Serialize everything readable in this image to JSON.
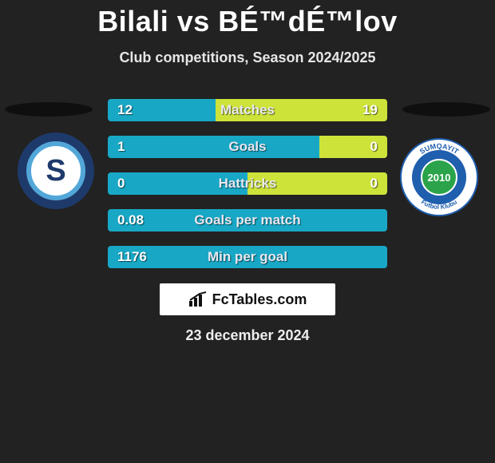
{
  "title": "Bilali vs BÉ™dÉ™lov",
  "subtitle": "Club competitions, Season 2024/2025",
  "date": "23 december 2024",
  "logo_text": "FcTables.com",
  "colors": {
    "bar_left": "#18a8c6",
    "bar_right": "#cde33a",
    "bg": "#222222"
  },
  "left_badge": {
    "name": "Sabah FC style",
    "ring": "#1e3a6b",
    "inner": "#ffffff",
    "accent": "#52a7d8",
    "letter": "S"
  },
  "right_badge": {
    "name": "Sumqayit FK style",
    "outer_text_top": "SUMQAYIT",
    "outer_text_bottom": "Futbol Klubu",
    "year": "2010",
    "ring": "#1f5fae",
    "inner": "#ffffff",
    "accent": "#2aa34a"
  },
  "bars": [
    {
      "label": "Matches",
      "left": "12",
      "right": "19",
      "lw": 135,
      "rw": 215
    },
    {
      "label": "Goals",
      "left": "1",
      "right": "0",
      "lw": 265,
      "rw": 85
    },
    {
      "label": "Hattricks",
      "left": "0",
      "right": "0",
      "lw": 175,
      "rw": 175
    },
    {
      "label": "Goals per match",
      "left": "0.08",
      "right": "",
      "lw": 350,
      "rw": 0
    },
    {
      "label": "Min per goal",
      "left": "1176",
      "right": "",
      "lw": 350,
      "rw": 0
    }
  ]
}
